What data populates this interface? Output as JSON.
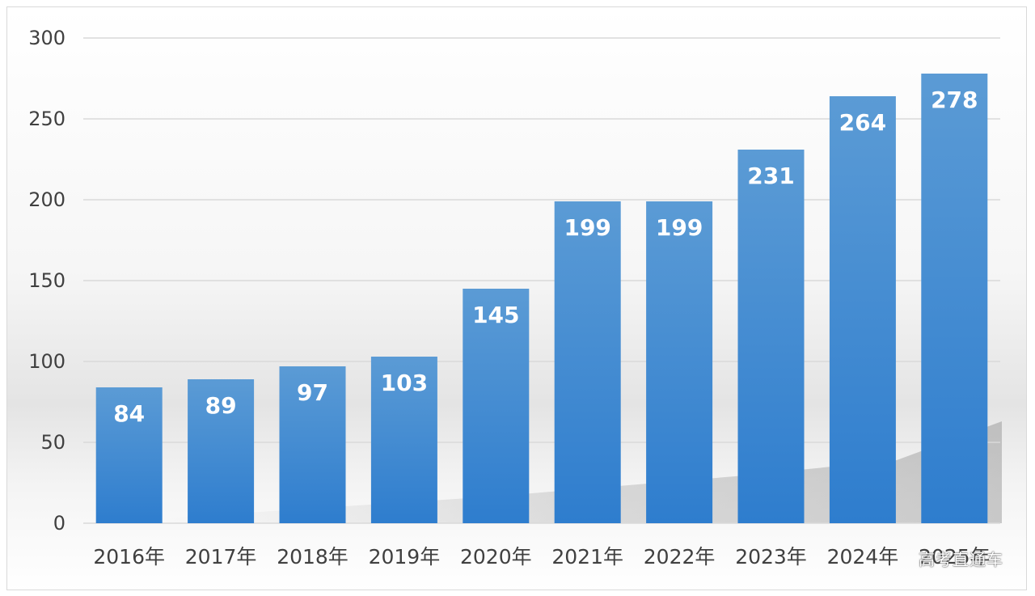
{
  "chart_data": {
    "type": "bar",
    "categories": [
      "2016年",
      "2017年",
      "2018年",
      "2019年",
      "2020年",
      "2021年",
      "2022年",
      "2023年",
      "2024年",
      "2025年"
    ],
    "values": [
      84,
      89,
      97,
      103,
      145,
      199,
      199,
      231,
      264,
      278
    ],
    "title": "",
    "xlabel": "",
    "ylabel": "",
    "ylim": [
      0,
      300
    ],
    "yticks": [
      0,
      50,
      100,
      150,
      200,
      250,
      300
    ],
    "grid": true,
    "legend": "none",
    "bar_color_top": "#5b9bd5",
    "bar_color_bottom": "#2e7dce",
    "data_labels": true
  },
  "watermark": "高考直通车"
}
